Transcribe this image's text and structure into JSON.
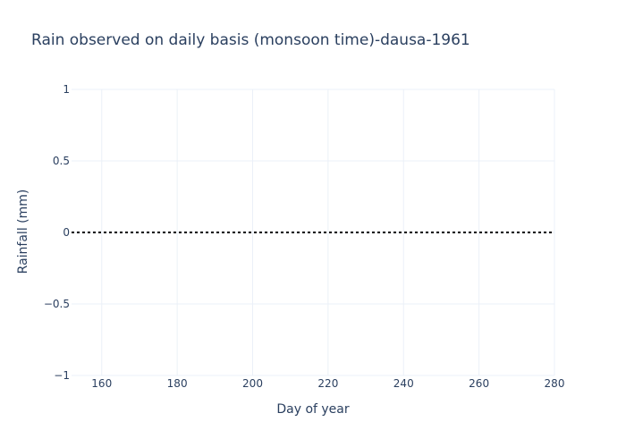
{
  "chart_data": {
    "type": "line",
    "title": "Rain observed on daily basis (monsoon time)-dausa-1961",
    "xlabel": "Day of year",
    "ylabel": "Rainfall (mm)",
    "xlim": [
      152,
      280
    ],
    "ylim": [
      -1,
      1
    ],
    "x_ticks": [
      160,
      180,
      200,
      220,
      240,
      260,
      280
    ],
    "x_tick_labels": [
      "160",
      "180",
      "200",
      "220",
      "240",
      "260",
      "280"
    ],
    "y_ticks": [
      1,
      0.5,
      0,
      -0.5,
      -1
    ],
    "y_tick_labels": [
      "1",
      "0.5",
      "0",
      "−0.5",
      "−1"
    ],
    "grid": true,
    "series": [
      {
        "line_style": "dotted",
        "color": "#000000",
        "x": [
          152,
          280
        ],
        "y": [
          0,
          0
        ]
      }
    ]
  }
}
